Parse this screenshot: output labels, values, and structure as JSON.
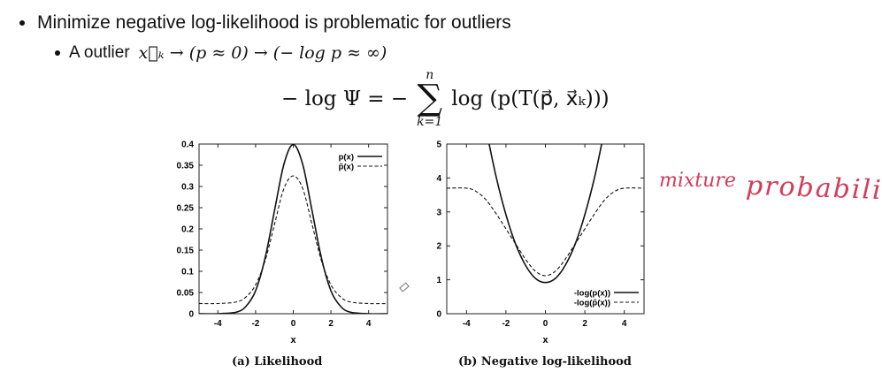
{
  "bullets": {
    "first": "Minimize negative log-likelihood is problematic for outliers",
    "second_prefix": "A outlier",
    "second_math": "x⃗ₖ → (p ≈ 0) → (− log p ≈ ∞)"
  },
  "equation": {
    "lhs": "− log Ψ = −",
    "upper": "n",
    "lower": "k=1",
    "rhs": "log (p(T(p⃗, x⃗ₖ)))"
  },
  "annotation": {
    "text1": "mixture",
    "text2": "probability",
    "color": "#d33b5a"
  },
  "chart_data": [
    {
      "type": "line",
      "caption": "(a) Likelihood",
      "xlabel": "x",
      "ylabel": "",
      "xlim": [
        -5,
        5
      ],
      "ylim": [
        0,
        0.4
      ],
      "xticks": [
        "-4",
        "-2",
        "0",
        "2",
        "4"
      ],
      "yticks": [
        "0",
        "0.05",
        "0.1",
        "0.15",
        "0.2",
        "0.25",
        "0.3",
        "0.35",
        "0.4"
      ],
      "legend_position": "top-right",
      "series": [
        {
          "name": "p(x)",
          "style": "solid",
          "x": [
            -5,
            -4,
            -3,
            -2.5,
            -2,
            -1.5,
            -1,
            -0.5,
            0,
            0.5,
            1,
            1.5,
            2,
            2.5,
            3,
            4,
            5
          ],
          "y": [
            0,
            0,
            0.004,
            0.018,
            0.054,
            0.13,
            0.242,
            0.352,
            0.399,
            0.352,
            0.242,
            0.13,
            0.054,
            0.018,
            0.004,
            0,
            0
          ]
        },
        {
          "name": "p̃(x)",
          "style": "dashed",
          "x": [
            -5,
            -4,
            -3,
            -2.5,
            -2,
            -1.5,
            -1,
            -0.5,
            0,
            0.5,
            1,
            1.5,
            2,
            2.5,
            3,
            4,
            5
          ],
          "y": [
            0.024,
            0.024,
            0.028,
            0.04,
            0.068,
            0.124,
            0.21,
            0.295,
            0.325,
            0.295,
            0.21,
            0.124,
            0.068,
            0.04,
            0.028,
            0.024,
            0.024
          ]
        }
      ]
    },
    {
      "type": "line",
      "caption": "(b) Negative log-likelihood",
      "xlabel": "x",
      "ylabel": "",
      "xlim": [
        -5,
        5
      ],
      "ylim": [
        0,
        5
      ],
      "xticks": [
        "-4",
        "-2",
        "0",
        "2",
        "4"
      ],
      "yticks": [
        "0",
        "1",
        "2",
        "3",
        "4",
        "5"
      ],
      "legend_position": "bottom-right",
      "series": [
        {
          "name": "-log(p(x))",
          "style": "solid",
          "x": [
            -3,
            -2.5,
            -2,
            -1.5,
            -1,
            -0.5,
            0,
            0.5,
            1,
            1.5,
            2,
            2.5,
            3
          ],
          "y": [
            5.42,
            4.04,
            2.92,
            2.04,
            1.42,
            1.04,
            0.92,
            1.04,
            1.42,
            2.04,
            2.92,
            4.04,
            5.42
          ]
        },
        {
          "name": "-log(p̃(x))",
          "style": "dashed",
          "x": [
            -5,
            -4,
            -3.5,
            -3,
            -2.5,
            -2,
            -1.5,
            -1,
            -0.5,
            0,
            0.5,
            1,
            1.5,
            2,
            2.5,
            3,
            3.5,
            4,
            5
          ],
          "y": [
            3.7,
            3.7,
            3.6,
            3.35,
            2.95,
            2.5,
            2.05,
            1.6,
            1.25,
            1.12,
            1.25,
            1.6,
            2.05,
            2.5,
            2.95,
            3.35,
            3.6,
            3.7,
            3.7
          ]
        }
      ]
    }
  ]
}
